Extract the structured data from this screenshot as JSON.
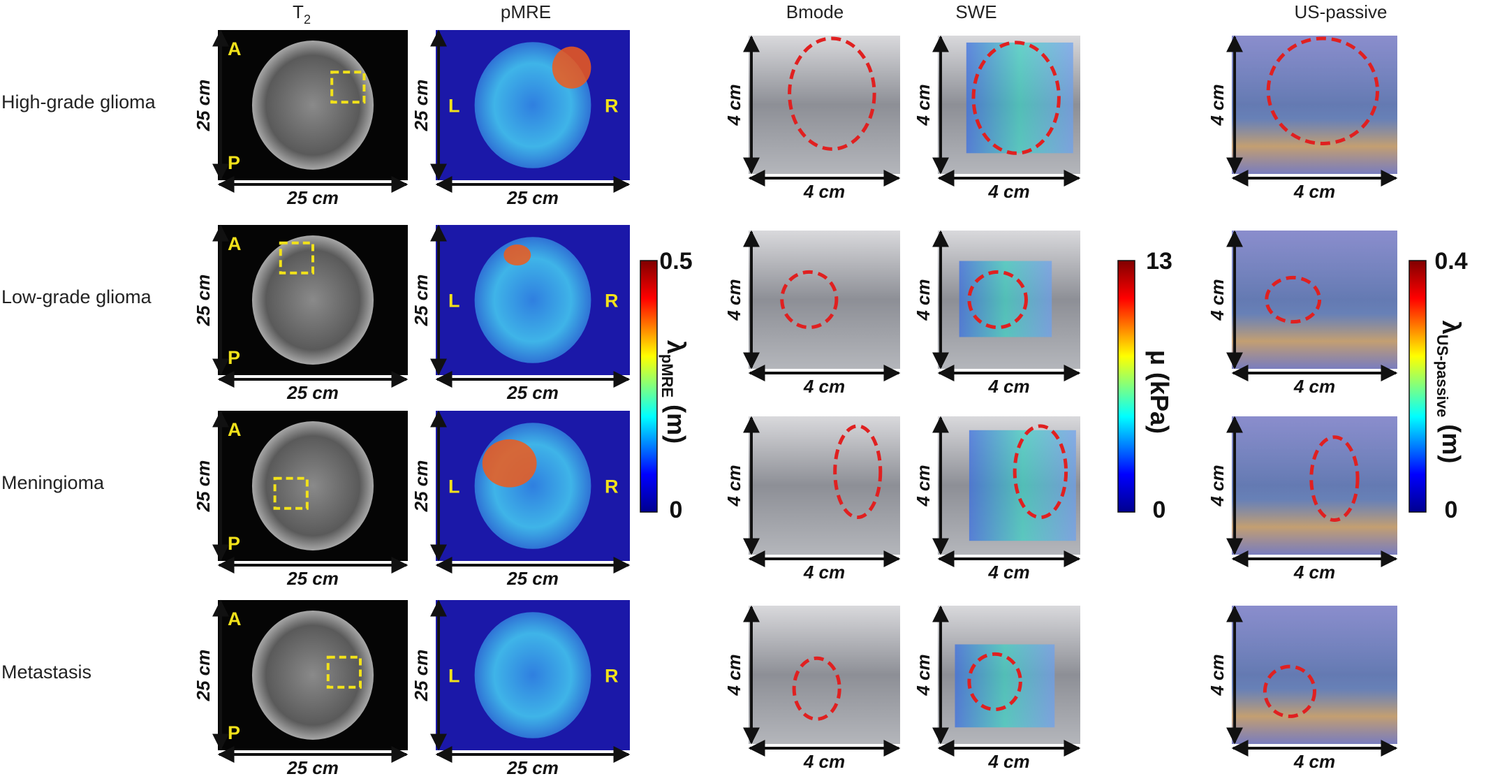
{
  "columns": [
    {
      "text": "T",
      "sub": "2"
    },
    {
      "text": "pMRE"
    },
    {
      "text": "Bmode"
    },
    {
      "text": "SWE"
    },
    {
      "text": "US-passive"
    }
  ],
  "rows": [
    "High-grade glioma",
    "Low-grade glioma",
    "Meningioma",
    "Metastasis"
  ],
  "mri": {
    "anterior": "A",
    "posterior": "P",
    "left": "L",
    "right": "R",
    "scale": "25 cm"
  },
  "ultrasound": {
    "scale": "4 cm"
  },
  "colorbars": [
    {
      "max": 0.5,
      "min": 0,
      "symbol": "λ",
      "sub": "pMRE",
      "unit": " (m)"
    },
    {
      "max": 13,
      "min": 0,
      "symbol": "μ",
      "unit": " (kPa)"
    },
    {
      "max": 0.4,
      "min": 0,
      "symbol": "λ",
      "sub": "US-passive",
      "unit": " (m)"
    }
  ]
}
